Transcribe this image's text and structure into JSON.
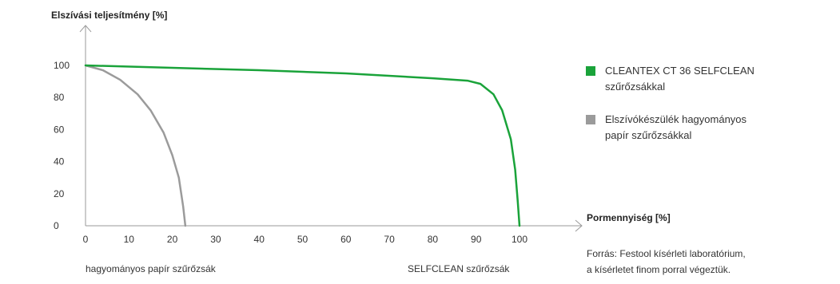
{
  "chart_data": {
    "type": "line",
    "ylabel": "Elszívási teljesítmény [%]",
    "xlabel": "Pormennyiség [%]",
    "xlim": [
      0,
      107
    ],
    "ylim": [
      0,
      107
    ],
    "x_ticks": [
      "0",
      "10",
      "20",
      "30",
      "40",
      "50",
      "60",
      "70",
      "80",
      "90",
      "100"
    ],
    "y_ticks": [
      "0",
      "20",
      "40",
      "60",
      "80",
      "100"
    ],
    "series": [
      {
        "name": "CLEANTEX CT 36 SELFCLEAN szűrőzsákkal",
        "color": "#1aa33a",
        "x": [
          0,
          20,
          40,
          60,
          80,
          88,
          91,
          94,
          96,
          98,
          99,
          99.6,
          100
        ],
        "y": [
          100,
          98.5,
          97,
          95,
          92,
          90.5,
          88.5,
          82,
          72,
          54,
          35,
          15,
          0
        ]
      },
      {
        "name": "Elszívókészülék hagyományos papír szűrőzsákkal",
        "color": "#9b9b9b",
        "x": [
          0,
          4,
          8,
          12,
          15,
          18,
          20,
          21.5,
          22.5,
          23
        ],
        "y": [
          100,
          97,
          91,
          82,
          72,
          58,
          44,
          30,
          12,
          0
        ]
      }
    ]
  },
  "legend": [
    {
      "line1": "CLEANTEX CT 36 SELFCLEAN",
      "line2": "szűrőzsákkal",
      "color": "#1aa33a"
    },
    {
      "line1": "Elszívókészülék hagyományos",
      "line2": "papír szűrőzsákkal",
      "color": "#9b9b9b"
    }
  ],
  "x_categories": {
    "left": "hagyományos papír szűrőzsák",
    "right": "SELFCLEAN szűrőzsák"
  },
  "source": {
    "line1": "Forrás: Festool kísérleti laboratórium,",
    "line2": "a kísérletet finom porral végeztük."
  }
}
